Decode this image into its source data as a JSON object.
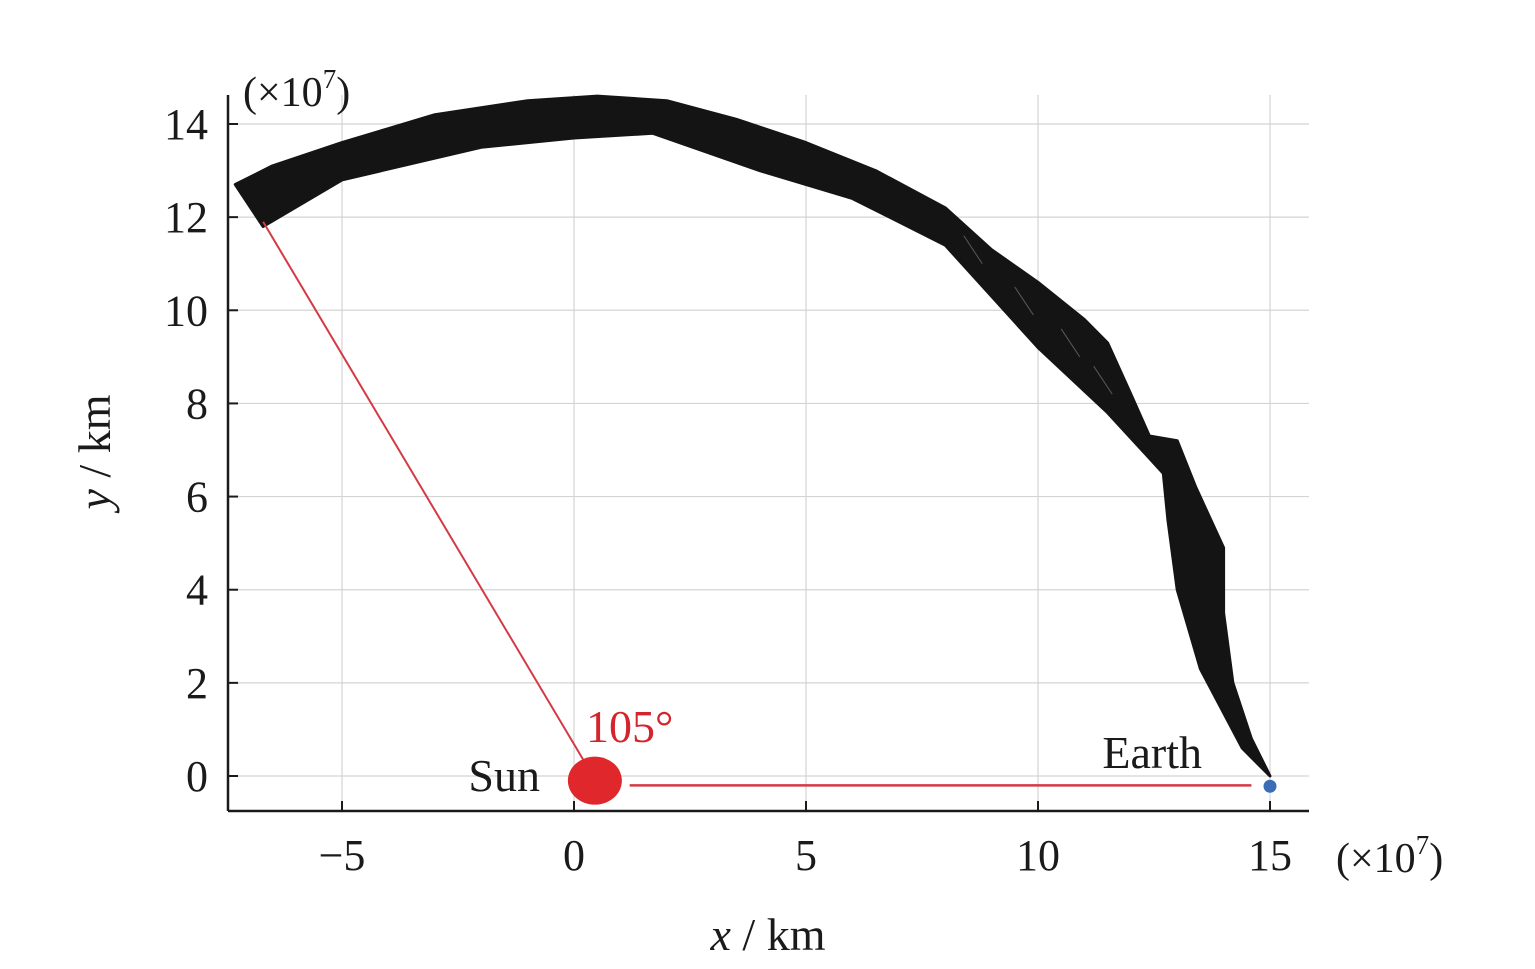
{
  "chart_data": {
    "type": "line",
    "title": "",
    "xlabel_var": "x",
    "xlabel_unit": " / km",
    "ylabel_var": "y",
    "ylabel_unit": " / km",
    "x_multiplier": "(×10",
    "x_multiplier_exp": "7",
    "x_multiplier_close": ")",
    "y_multiplier": "(×10",
    "y_multiplier_exp": "7",
    "y_multiplier_close": ")",
    "xlim": [
      -7.4,
      15.8
    ],
    "ylim": [
      -0.75,
      14.6
    ],
    "xticks": [
      -5,
      0,
      5,
      10,
      15
    ],
    "xtick_labels": [
      "−5",
      "0",
      "5",
      "10",
      "15"
    ],
    "yticks": [
      0,
      2,
      4,
      6,
      8,
      10,
      12,
      14
    ],
    "ytick_labels": [
      "0",
      "2",
      "4",
      "6",
      "8",
      "10",
      "12",
      "14"
    ],
    "grid": true,
    "trajectory_band": {
      "name": "",
      "color": "#141414",
      "outer": [
        [
          -7.3,
          12.7
        ],
        [
          -6.5,
          13.1
        ],
        [
          -5,
          13.6
        ],
        [
          -3,
          14.2
        ],
        [
          -1,
          14.5
        ],
        [
          0.5,
          14.6
        ],
        [
          2,
          14.5
        ],
        [
          3.5,
          14.1
        ],
        [
          5,
          13.6
        ],
        [
          6.5,
          13.0
        ],
        [
          8,
          12.2
        ],
        [
          9,
          11.3
        ],
        [
          10,
          10.6
        ],
        [
          11,
          9.8
        ],
        [
          11.5,
          9.3
        ],
        [
          12,
          8.2
        ],
        [
          12.4,
          7.3
        ],
        [
          13,
          7.2
        ],
        [
          13.4,
          6.2
        ],
        [
          14,
          4.9
        ],
        [
          14,
          3.5
        ],
        [
          14.2,
          2.0
        ],
        [
          14.6,
          0.8
        ],
        [
          15,
          0.0
        ]
      ],
      "inner": [
        [
          15,
          0.0
        ],
        [
          14.4,
          0.6
        ],
        [
          13.5,
          2.3
        ],
        [
          13,
          4.0
        ],
        [
          12.8,
          5.5
        ],
        [
          12.7,
          6.5
        ],
        [
          11.5,
          7.8
        ],
        [
          10,
          9.2
        ],
        [
          9,
          10.3
        ],
        [
          8,
          11.4
        ],
        [
          6,
          12.4
        ],
        [
          4,
          13.0
        ],
        [
          1.7,
          13.8
        ],
        [
          0,
          13.7
        ],
        [
          -2,
          13.5
        ],
        [
          -5,
          12.8
        ],
        [
          -6.7,
          11.8
        ]
      ]
    },
    "sun": {
      "label": "Sun",
      "x": 0.45,
      "y": -0.1,
      "color": "#e0282c"
    },
    "earth": {
      "label": "Earth",
      "x": 15.0,
      "y": -0.22,
      "color": "#3a6db5"
    },
    "angle_annotation": {
      "label": "105°",
      "color": "#d4242c"
    },
    "sun_probe_line": {
      "from": [
        0.2,
        0.35
      ],
      "to": [
        -6.7,
        11.9
      ],
      "color": "#d43a45"
    },
    "sun_earth_line": {
      "from": [
        1.2,
        -0.2
      ],
      "to": [
        14.6,
        -0.2
      ],
      "color": "#d43a45"
    }
  }
}
